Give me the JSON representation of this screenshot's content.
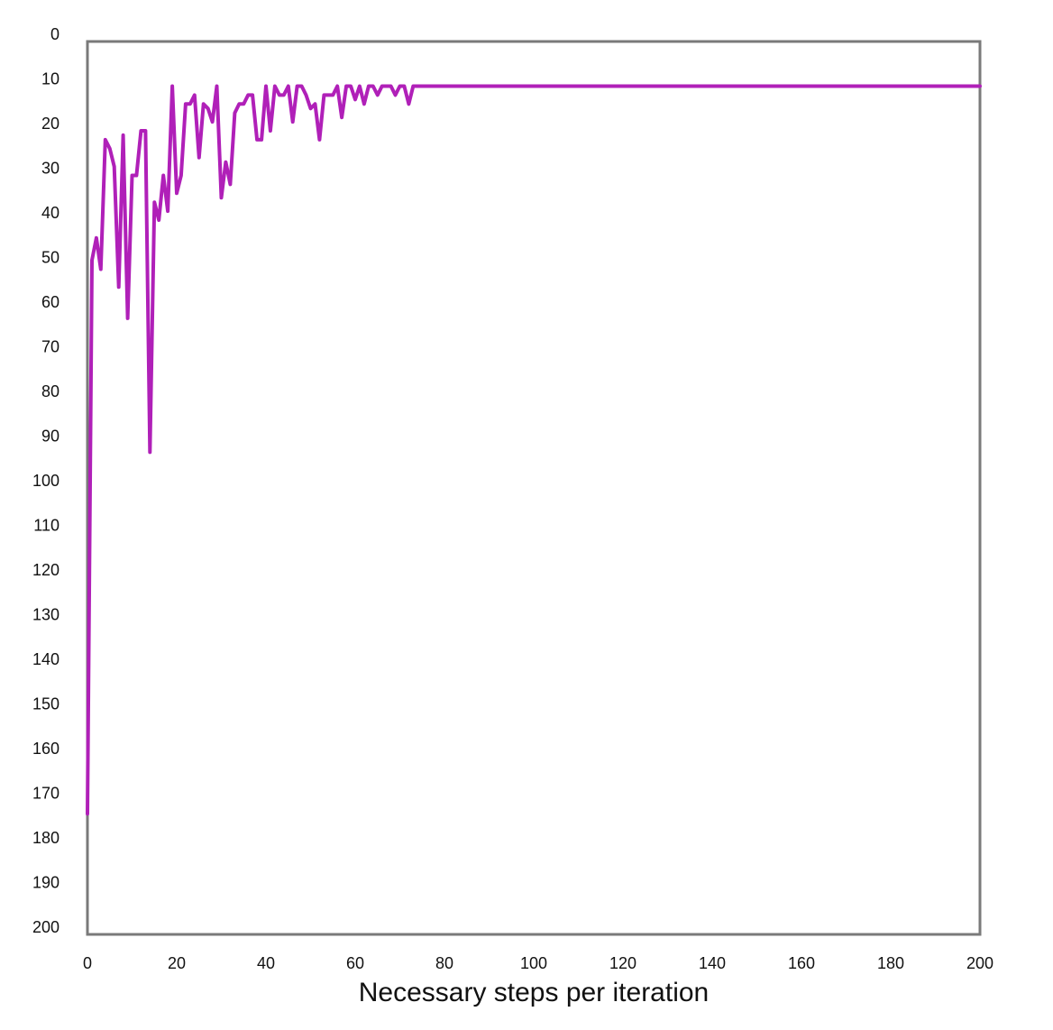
{
  "chart_data": {
    "type": "line",
    "title": "",
    "xlabel": "Necessary steps per iteration",
    "ylabel": "",
    "xlim": [
      0,
      200
    ],
    "ylim": [
      0,
      200
    ],
    "y_inverted": true,
    "grid": false,
    "legend": "none",
    "x_ticks": [
      "0",
      "20",
      "40",
      "60",
      "80",
      "100",
      "120",
      "140",
      "160",
      "180",
      "200"
    ],
    "y_ticks": [
      "0",
      "10",
      "20",
      "30",
      "40",
      "50",
      "60",
      "70",
      "80",
      "90",
      "100",
      "110",
      "120",
      "130",
      "140",
      "150",
      "160",
      "170",
      "180",
      "190",
      "200"
    ],
    "series": [
      {
        "color": "#b020b8",
        "x": [
          0,
          1,
          2,
          3,
          4,
          5,
          6,
          7,
          8,
          9,
          10,
          11,
          12,
          13,
          14,
          15,
          16,
          17,
          18,
          19,
          20,
          21,
          22,
          23,
          24,
          25,
          26,
          27,
          28,
          29,
          30,
          31,
          32,
          33,
          34,
          35,
          36,
          37,
          38,
          39,
          40,
          41,
          42,
          43,
          44,
          45,
          46,
          47,
          48,
          49,
          50,
          51,
          52,
          53,
          54,
          55,
          56,
          57,
          58,
          59,
          60,
          61,
          62,
          63,
          64,
          65,
          66,
          67,
          68,
          69,
          70,
          71,
          72,
          73,
          74,
          200
        ],
        "y": [
          173,
          49,
          44,
          51,
          22,
          24,
          28,
          55,
          21,
          62,
          30,
          30,
          20,
          20,
          92,
          36,
          40,
          30,
          38,
          10,
          34,
          30,
          14,
          14,
          12,
          26,
          14,
          15,
          18,
          10,
          35,
          27,
          32,
          16,
          14,
          14,
          12,
          12,
          22,
          22,
          10,
          20,
          10,
          12,
          12,
          10,
          18,
          10,
          10,
          12,
          15,
          14,
          22,
          12,
          12,
          12,
          10,
          17,
          10,
          10,
          13,
          10,
          14,
          10,
          10,
          12,
          10,
          10,
          10,
          12,
          10,
          10,
          14,
          10,
          10,
          10
        ]
      }
    ]
  }
}
